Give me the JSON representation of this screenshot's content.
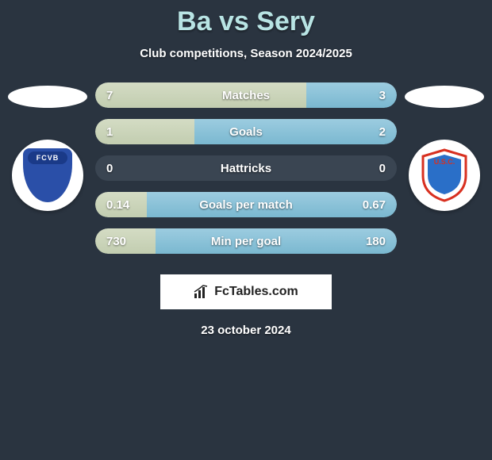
{
  "title": "Ba vs Sery",
  "subtitle": "Club competitions, Season 2024/2025",
  "date": "23 october 2024",
  "colors": {
    "background": "#2a3440",
    "title_color": "#b8e4e4",
    "text_color": "#ffffff",
    "bar_track": "#3a4552",
    "left_fill_top": "#d4dcc4",
    "left_fill_bottom": "#c2cdb0",
    "right_fill_top": "#9ccce0",
    "right_fill_bottom": "#7ab8d0",
    "crest_bg": "#ffffff",
    "left_shield": "#2a4fa8",
    "right_shield_blue": "#2a6fc8",
    "right_shield_red": "#d83020"
  },
  "bars": [
    {
      "label": "Matches",
      "left": "7",
      "right": "3",
      "left_pct": 70,
      "right_pct": 30
    },
    {
      "label": "Goals",
      "left": "1",
      "right": "2",
      "left_pct": 33,
      "right_pct": 67
    },
    {
      "label": "Hattricks",
      "left": "0",
      "right": "0",
      "left_pct": 0,
      "right_pct": 0
    },
    {
      "label": "Goals per match",
      "left": "0.14",
      "right": "0.67",
      "left_pct": 17,
      "right_pct": 83
    },
    {
      "label": "Min per goal",
      "left": "730",
      "right": "180",
      "left_pct": 20,
      "right_pct": 80
    }
  ],
  "left_team": {
    "badge_text": "FCVB"
  },
  "right_team": {
    "badge_text": "U.S.C."
  },
  "logo_text": "FcTables.com"
}
